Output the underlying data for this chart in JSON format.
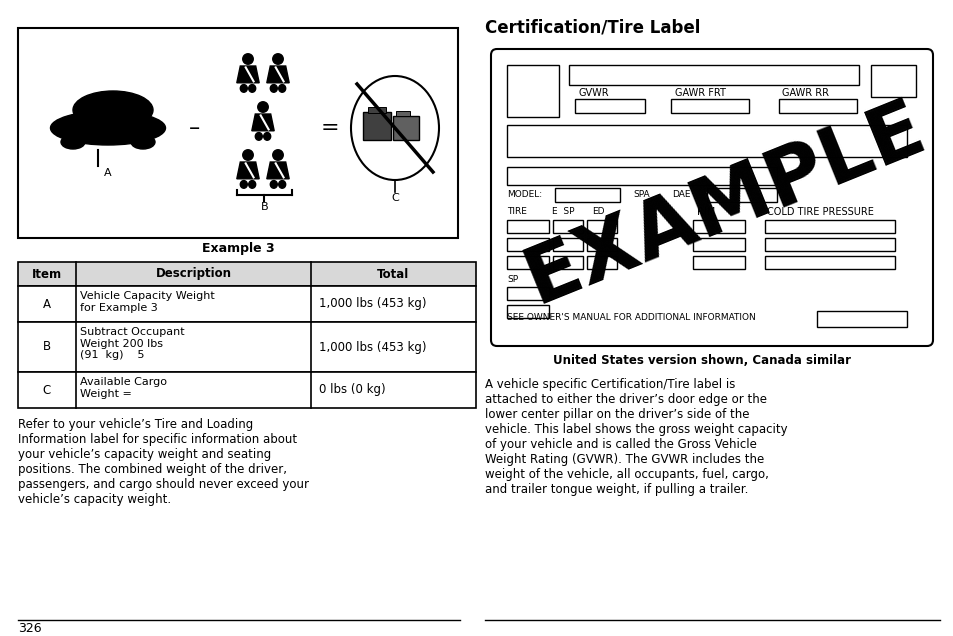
{
  "title_right": "Certification/Tire Label",
  "subtitle_right": "United States version shown, Canada similar",
  "body_text_right": "A vehicle specific Certification/Tire label is\nattached to either the driver’s door edge or the\nlower center pillar on the driver’s side of the\nvehicle. This label shows the gross weight capacity\nof your vehicle and is called the Gross Vehicle\nWeight Rating (GVWR). The GVWR includes the\nweight of the vehicle, all occupants, fuel, cargo,\nand trailer tongue weight, if pulling a trailer.",
  "example_caption": "Example 3",
  "table_headers": [
    "Item",
    "Description",
    "Total"
  ],
  "table_rows": [
    [
      "A",
      "Vehicle Capacity Weight\nfor Example 3",
      "1,000 lbs (453 kg)"
    ],
    [
      "B",
      "Subtract Occupant\nWeight 200 lbs\n(91  kg)    5",
      "1,000 lbs (453 kg)"
    ],
    [
      "C",
      "Available Cargo\nWeight =",
      "0 lbs (0 kg)"
    ]
  ],
  "bottom_text": "Refer to your vehicle’s Tire and Loading\nInformation label for specific information about\nyour vehicle’s capacity weight and seating\npositions. The combined weight of the driver,\npassengers, and cargo should never exceed your\nvehicle’s capacity weight.",
  "page_number": "326",
  "bg_color": "#ffffff",
  "text_color": "#000000"
}
